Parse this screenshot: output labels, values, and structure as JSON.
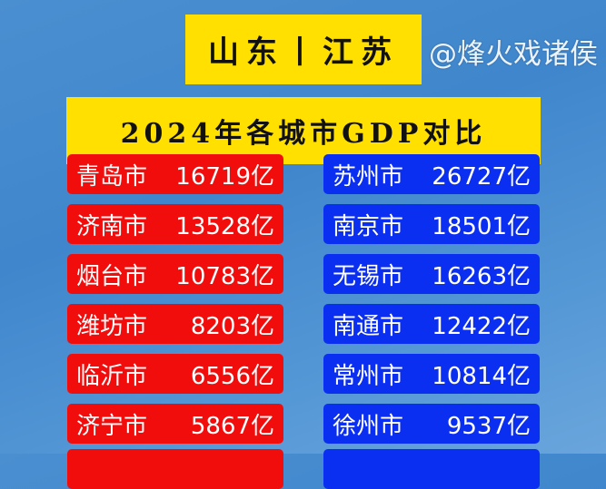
{
  "title": {
    "line1": "山东丨江苏",
    "line2": "2024年各城市GDP对比"
  },
  "shandong": [
    {
      "city": "青岛市",
      "gdp": "16719亿"
    },
    {
      "city": "济南市",
      "gdp": "13528亿"
    },
    {
      "city": "烟台市",
      "gdp": "10783亿"
    },
    {
      "city": "潍坊市",
      "gdp": "8203亿"
    },
    {
      "city": "临沂市",
      "gdp": "6556亿"
    },
    {
      "city": "济宁市",
      "gdp": "5867亿"
    }
  ],
  "jiangsu": [
    {
      "city": "苏州市",
      "gdp": "26727亿"
    },
    {
      "city": "南京市",
      "gdp": "18501亿"
    },
    {
      "city": "无锡市",
      "gdp": "16263亿"
    },
    {
      "city": "南通市",
      "gdp": "12422亿"
    },
    {
      "city": "常州市",
      "gdp": "10814亿"
    },
    {
      "city": "徐州市",
      "gdp": "9537亿"
    }
  ],
  "watermark": "@烽火戏诸侯",
  "colors": {
    "shandong": "#f20d0d",
    "jiangsu": "#0b2ff0",
    "title_bg": "#ffe000"
  }
}
